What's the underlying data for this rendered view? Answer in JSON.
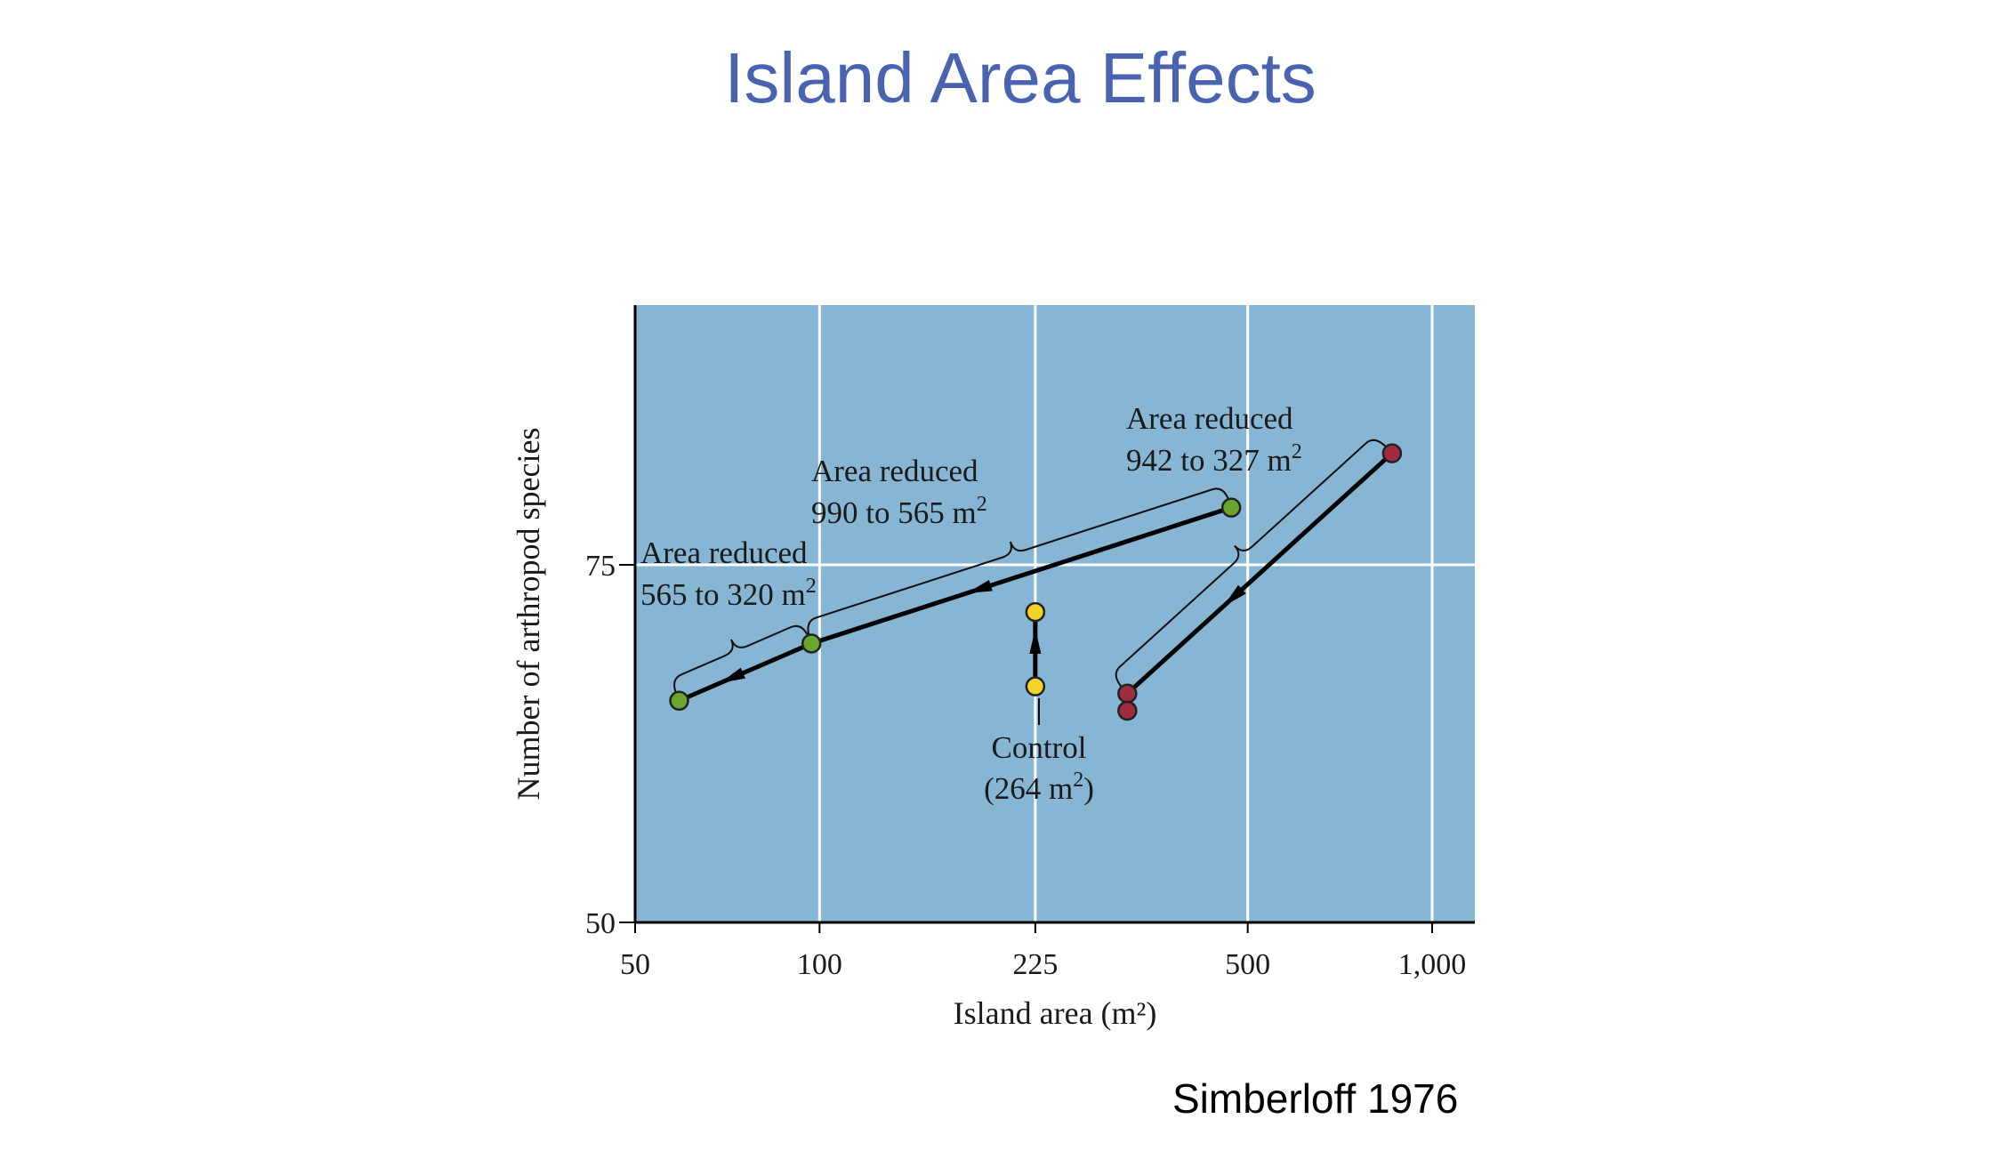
{
  "slide": {
    "title": "Island Area Effects",
    "citation": "Simberloff 1976"
  },
  "colors": {
    "title": "#4a63b0",
    "plot_background": "#87b6d4",
    "grid": "#ffffff",
    "green_group": "#6aa530",
    "yellow_group": "#f2d32a",
    "red_group": "#a02a3e"
  },
  "chart_data": {
    "type": "scatter",
    "x_scale": "log",
    "xlabel": "Island area (m²)",
    "ylabel": "Number of arthropod species",
    "x_ticks": [
      50,
      100,
      225,
      500,
      1000
    ],
    "x_tick_labels": [
      "50",
      "100",
      "225",
      "500",
      "1,000"
    ],
    "y_ticks": [
      50,
      75
    ],
    "y_tick_labels": [
      "50",
      "75"
    ],
    "xlim": [
      50,
      1100
    ],
    "ylim": [
      50,
      93
    ],
    "grid": true,
    "series": [
      {
        "points": [
          {
            "x": 470,
            "y": 79
          },
          {
            "x": 97,
            "y": 69.5
          },
          {
            "x": 59,
            "y": 65.5
          }
        ],
        "annotations": [
          {
            "line1": "Area reduced",
            "line2": "990 to 565 m",
            "sup": "2"
          },
          {
            "line1": "Area reduced",
            "line2": "565 to 320 m",
            "sup": "2"
          }
        ]
      },
      {
        "points": [
          {
            "x": 225,
            "y": 66.5
          },
          {
            "x": 225,
            "y": 71.7
          }
        ],
        "annotations": [
          {
            "line1": "Control",
            "line2": "(264 m",
            "sup": "2",
            "line2_end": ")"
          }
        ]
      },
      {
        "points": [
          {
            "x": 860,
            "y": 82.8
          },
          {
            "x": 318,
            "y": 66
          },
          {
            "x": 318,
            "y": 64.8
          }
        ],
        "annotations": [
          {
            "line1": "Area reduced",
            "line2": "942 to 327 m",
            "sup": "2"
          }
        ]
      }
    ]
  }
}
